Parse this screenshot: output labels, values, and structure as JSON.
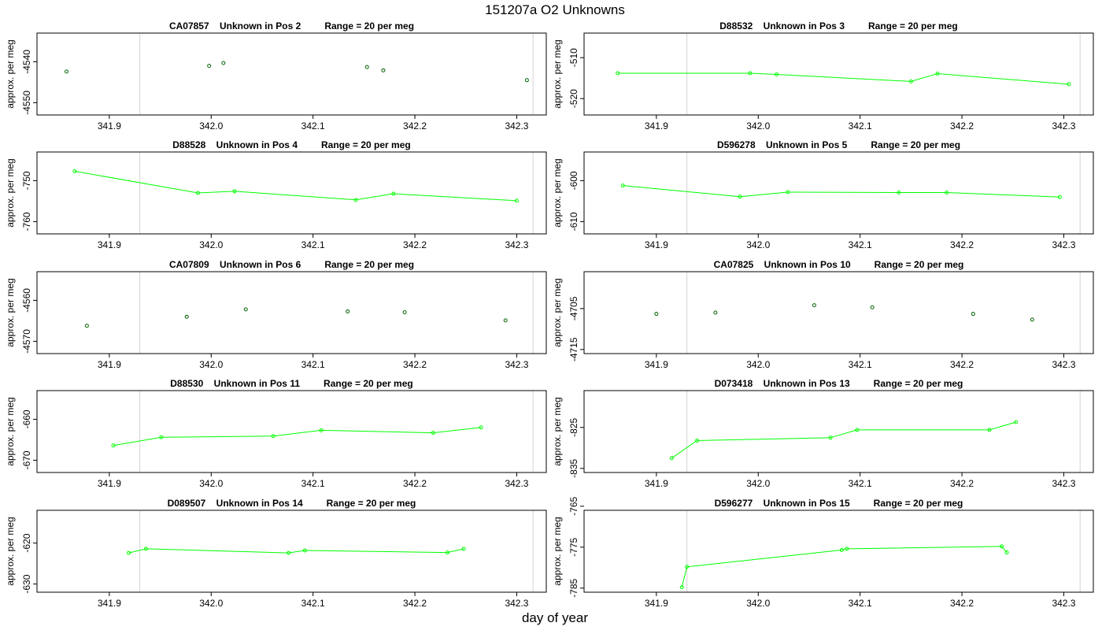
{
  "figure": {
    "title": "151207a  O2 Unknowns",
    "xlabel": "day of year"
  },
  "chart_data": [
    {
      "type": "scatter",
      "title_id": "CA07857",
      "title_pos": "Unknown in Pos 2",
      "title_range": "Range = 20 per meg",
      "ylabel": "approx. per meg",
      "line": false,
      "xlim": [
        341.829,
        342.329
      ],
      "ylim": [
        -4553,
        -4533
      ],
      "xticks": [
        341.9,
        342.0,
        342.1,
        342.2,
        342.3
      ],
      "xtick_labels": [
        "341.9",
        "342.0",
        "342.1",
        "342.2",
        "342.3"
      ],
      "yticks": [
        -4540,
        -4550
      ],
      "ytick_labels": [
        "-4540",
        "-4550"
      ],
      "vlines": [
        341.93,
        342.316
      ],
      "x": [
        341.858,
        341.998,
        342.012,
        342.153,
        342.169,
        342.31
      ],
      "y": [
        -4542.4,
        -4541.0,
        -4540.3,
        -4541.3,
        -4542.1,
        -4544.5
      ]
    },
    {
      "type": "line",
      "title_id": "D88532",
      "title_pos": "Unknown in Pos 3",
      "title_range": "Range = 20 per meg",
      "ylabel": "approx. per meg",
      "line": true,
      "xlim": [
        341.829,
        342.329
      ],
      "ylim": [
        -524,
        -504
      ],
      "xticks": [
        341.9,
        342.0,
        342.1,
        342.2,
        342.3
      ],
      "xtick_labels": [
        "341.9",
        "342.0",
        "342.1",
        "342.2",
        "342.3"
      ],
      "yticks": [
        -510,
        -520
      ],
      "ytick_labels": [
        "-510",
        "-520"
      ],
      "vlines": [
        341.93,
        342.316
      ],
      "x": [
        341.862,
        341.992,
        342.018,
        342.15,
        342.176,
        342.305
      ],
      "y": [
        -513.8,
        -513.8,
        -514.1,
        -515.8,
        -513.9,
        -516.5
      ]
    },
    {
      "type": "line",
      "title_id": "D88528",
      "title_pos": "Unknown in Pos 4",
      "title_range": "Range = 20 per meg",
      "ylabel": "approx. per meg",
      "line": true,
      "xlim": [
        341.829,
        342.329
      ],
      "ylim": [
        -763,
        -743
      ],
      "xticks": [
        341.9,
        342.0,
        342.1,
        342.2,
        342.3
      ],
      "xtick_labels": [
        "341.9",
        "342.0",
        "342.1",
        "342.2",
        "342.3"
      ],
      "yticks": [
        -750,
        -760
      ],
      "ytick_labels": [
        "-750",
        "-760"
      ],
      "vlines": [
        341.93,
        342.316
      ],
      "x": [
        341.866,
        341.987,
        342.023,
        342.142,
        342.179,
        342.3
      ],
      "y": [
        -747.7,
        -753.0,
        -752.6,
        -754.7,
        -753.2,
        -754.9
      ]
    },
    {
      "type": "line",
      "title_id": "D596278",
      "title_pos": "Unknown in Pos 5",
      "title_range": "Range = 20 per meg",
      "ylabel": "approx. per meg",
      "line": true,
      "xlim": [
        341.829,
        342.329
      ],
      "ylim": [
        -613,
        -593
      ],
      "xticks": [
        341.9,
        342.0,
        342.1,
        342.2,
        342.3
      ],
      "xtick_labels": [
        "341.9",
        "342.0",
        "342.1",
        "342.2",
        "342.3"
      ],
      "yticks": [
        -600,
        -610
      ],
      "ytick_labels": [
        "-600",
        "-610"
      ],
      "vlines": [
        341.93,
        342.316
      ],
      "x": [
        341.867,
        341.982,
        342.029,
        342.138,
        342.185,
        342.296
      ],
      "y": [
        -601.2,
        -603.9,
        -602.8,
        -602.9,
        -602.9,
        -604.0
      ]
    },
    {
      "type": "scatter",
      "title_id": "CA07809",
      "title_pos": "Unknown in Pos 6",
      "title_range": "Range = 20 per meg",
      "ylabel": "approx. per meg",
      "line": false,
      "xlim": [
        341.829,
        342.329
      ],
      "ylim": [
        -4573,
        -4553
      ],
      "xticks": [
        341.9,
        342.0,
        342.1,
        342.2,
        342.3
      ],
      "xtick_labels": [
        "341.9",
        "342.0",
        "342.1",
        "342.2",
        "342.3"
      ],
      "yticks": [
        -4560,
        -4570
      ],
      "ytick_labels": [
        "-4560",
        "-4570"
      ],
      "vlines": [
        341.93,
        342.316
      ],
      "x": [
        341.878,
        341.976,
        342.034,
        342.134,
        342.19,
        342.289
      ],
      "y": [
        -4566.2,
        -4564.0,
        -4562.2,
        -4562.7,
        -4562.9,
        -4564.9
      ]
    },
    {
      "type": "scatter",
      "title_id": "CA07825",
      "title_pos": "Unknown in Pos 10",
      "title_range": "Range = 20 per meg",
      "ylabel": "approx. per meg",
      "line": false,
      "xlim": [
        341.829,
        342.329
      ],
      "ylim": [
        -4716,
        -4696
      ],
      "xticks": [
        341.9,
        342.0,
        342.1,
        342.2,
        342.3
      ],
      "xtick_labels": [
        "341.9",
        "342.0",
        "342.1",
        "342.2",
        "342.3"
      ],
      "yticks": [
        -4705,
        -4715
      ],
      "ytick_labels": [
        "-4705",
        "-4715"
      ],
      "vlines": [
        341.93,
        342.316
      ],
      "x": [
        341.9,
        341.958,
        342.055,
        342.112,
        342.211,
        342.269
      ],
      "y": [
        -4706.3,
        -4706.0,
        -4704.2,
        -4704.7,
        -4706.3,
        -4707.7
      ]
    },
    {
      "type": "line",
      "title_id": "D88530",
      "title_pos": "Unknown in Pos 11",
      "title_range": "Range = 20 per meg",
      "ylabel": "approx. per meg",
      "line": true,
      "xlim": [
        341.829,
        342.329
      ],
      "ylim": [
        -673,
        -653
      ],
      "xticks": [
        341.9,
        342.0,
        342.1,
        342.2,
        342.3
      ],
      "xtick_labels": [
        "341.9",
        "342.0",
        "342.1",
        "342.2",
        "342.3"
      ],
      "yticks": [
        -660,
        -670
      ],
      "ytick_labels": [
        "-660",
        "-670"
      ],
      "vlines": [
        341.93,
        342.316
      ],
      "x": [
        341.904,
        341.951,
        342.061,
        342.108,
        342.218,
        342.265
      ],
      "y": [
        -666.4,
        -664.4,
        -664.1,
        -662.7,
        -663.3,
        -662.0
      ]
    },
    {
      "type": "line",
      "title_id": "D073418",
      "title_pos": "Unknown in Pos 13",
      "title_range": "Range = 20 per meg",
      "ylabel": "approx. per meg",
      "line": true,
      "xlim": [
        341.829,
        342.329
      ],
      "ylim": [
        -836,
        -816
      ],
      "xticks": [
        341.9,
        342.0,
        342.1,
        342.2,
        342.3
      ],
      "xtick_labels": [
        "341.9",
        "342.0",
        "342.1",
        "342.2",
        "342.3"
      ],
      "yticks": [
        -825,
        -835
      ],
      "ytick_labels": [
        "-825",
        "-835"
      ],
      "vlines": [
        341.93,
        342.316
      ],
      "x": [
        341.915,
        341.94,
        342.071,
        342.097,
        342.227,
        342.253
      ],
      "y": [
        -832.5,
        -828.2,
        -827.5,
        -825.6,
        -825.6,
        -823.7
      ]
    },
    {
      "type": "line",
      "title_id": "D089507",
      "title_pos": "Unknown in Pos 14",
      "title_range": "Range = 20 per meg",
      "ylabel": "approx. per meg",
      "line": true,
      "xlim": [
        341.829,
        342.329
      ],
      "ylim": [
        -632,
        -612
      ],
      "xticks": [
        341.9,
        342.0,
        342.1,
        342.2,
        342.3
      ],
      "xtick_labels": [
        "341.9",
        "342.0",
        "342.1",
        "342.2",
        "342.3"
      ],
      "yticks": [
        -620,
        -630
      ],
      "ytick_labels": [
        "-620",
        "-630"
      ],
      "vlines": [
        341.93,
        342.316
      ],
      "x": [
        341.919,
        341.936,
        342.076,
        342.092,
        342.232,
        342.248
      ],
      "y": [
        -622.4,
        -621.4,
        -622.4,
        -621.8,
        -622.3,
        -621.4
      ]
    },
    {
      "type": "line",
      "title_id": "D596277",
      "title_pos": "Unknown in Pos 15",
      "title_range": "Range = 20 per meg",
      "ylabel": "approx. per meg",
      "line": true,
      "xlim": [
        341.829,
        342.329
      ],
      "ylim": [
        -786,
        -766
      ],
      "xticks": [
        341.9,
        342.0,
        342.1,
        342.2,
        342.3
      ],
      "xtick_labels": [
        "341.9",
        "342.0",
        "342.1",
        "342.2",
        "342.3"
      ],
      "yticks": [
        -765,
        -775,
        -785
      ],
      "ytick_labels": [
        "-765",
        "-775",
        "-785"
      ],
      "vlines": [
        341.93,
        342.316
      ],
      "x": [
        341.925,
        341.93,
        342.082,
        342.087,
        342.239,
        342.244
      ],
      "y": [
        -784.8,
        -779.8,
        -775.7,
        -775.4,
        -774.8,
        -776.3
      ]
    }
  ]
}
